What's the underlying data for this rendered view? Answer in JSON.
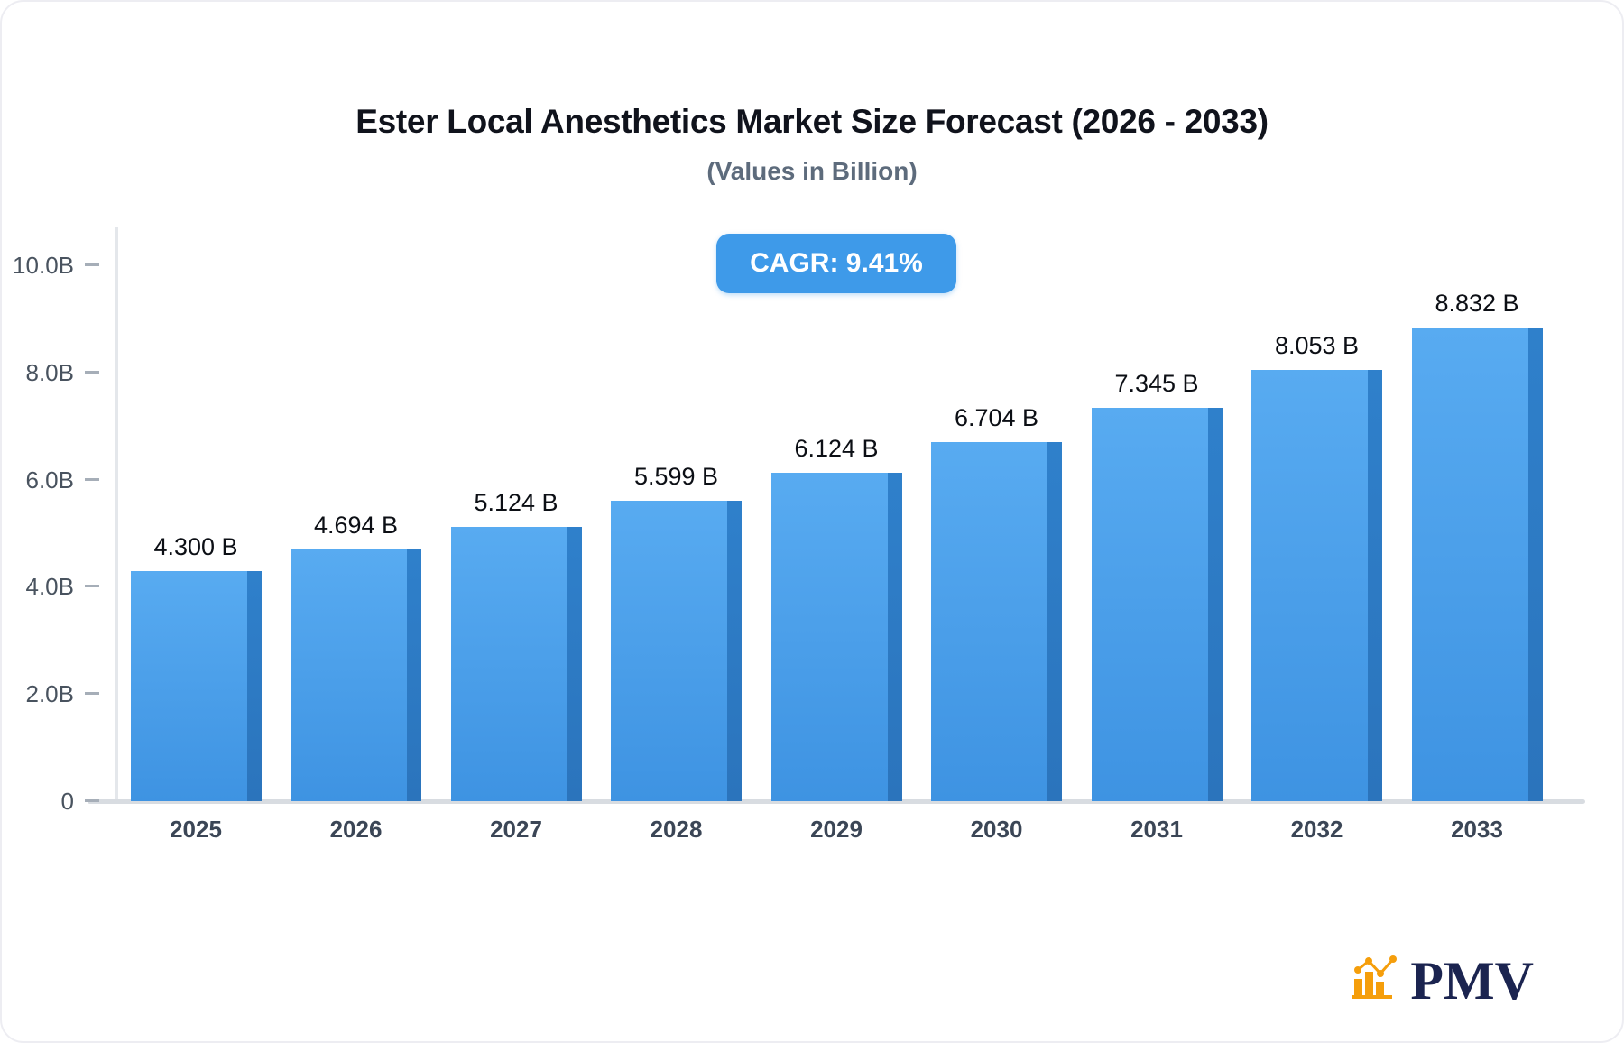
{
  "card": {
    "title": "Ester Local Anesthetics Market Size Forecast (2026 - 2033)",
    "subtitle": "(Values in Billion)",
    "cagr_badge": "CAGR: 9.41%"
  },
  "chart_data": {
    "type": "bar",
    "title": "Ester Local Anesthetics Market Size Forecast (2026 - 2033)",
    "subtitle": "(Values in Billion)",
    "annotation": "CAGR: 9.41%",
    "categories": [
      "2025",
      "2026",
      "2027",
      "2028",
      "2029",
      "2030",
      "2031",
      "2032",
      "2033"
    ],
    "values": [
      4.3,
      4.694,
      5.124,
      5.599,
      6.124,
      6.704,
      7.345,
      8.053,
      8.832
    ],
    "value_labels": [
      "4.300 B",
      "4.694 B",
      "5.124 B",
      "5.599 B",
      "6.124 B",
      "6.704 B",
      "7.345 B",
      "8.053 B",
      "8.832 B"
    ],
    "xlabel": "",
    "ylabel": "",
    "ylim": [
      0,
      10
    ],
    "yticks": [
      {
        "v": 10,
        "label": "10.0B"
      },
      {
        "v": 8,
        "label": "8.0B"
      },
      {
        "v": 6,
        "label": "6.0B"
      },
      {
        "v": 4,
        "label": "4.0B"
      },
      {
        "v": 2,
        "label": "2.0B"
      },
      {
        "v": 0,
        "label": "0"
      }
    ],
    "grid": false,
    "legend": "none",
    "bar_color": "#3e93e2",
    "bar_side_color": "#2d7dc9",
    "badge_color": "#3e9ae9"
  },
  "logo": {
    "text": "PMV",
    "icon": "bar-chart-logo-icon",
    "text_color": "#1b2450",
    "icon_color": "#f59e0b"
  }
}
